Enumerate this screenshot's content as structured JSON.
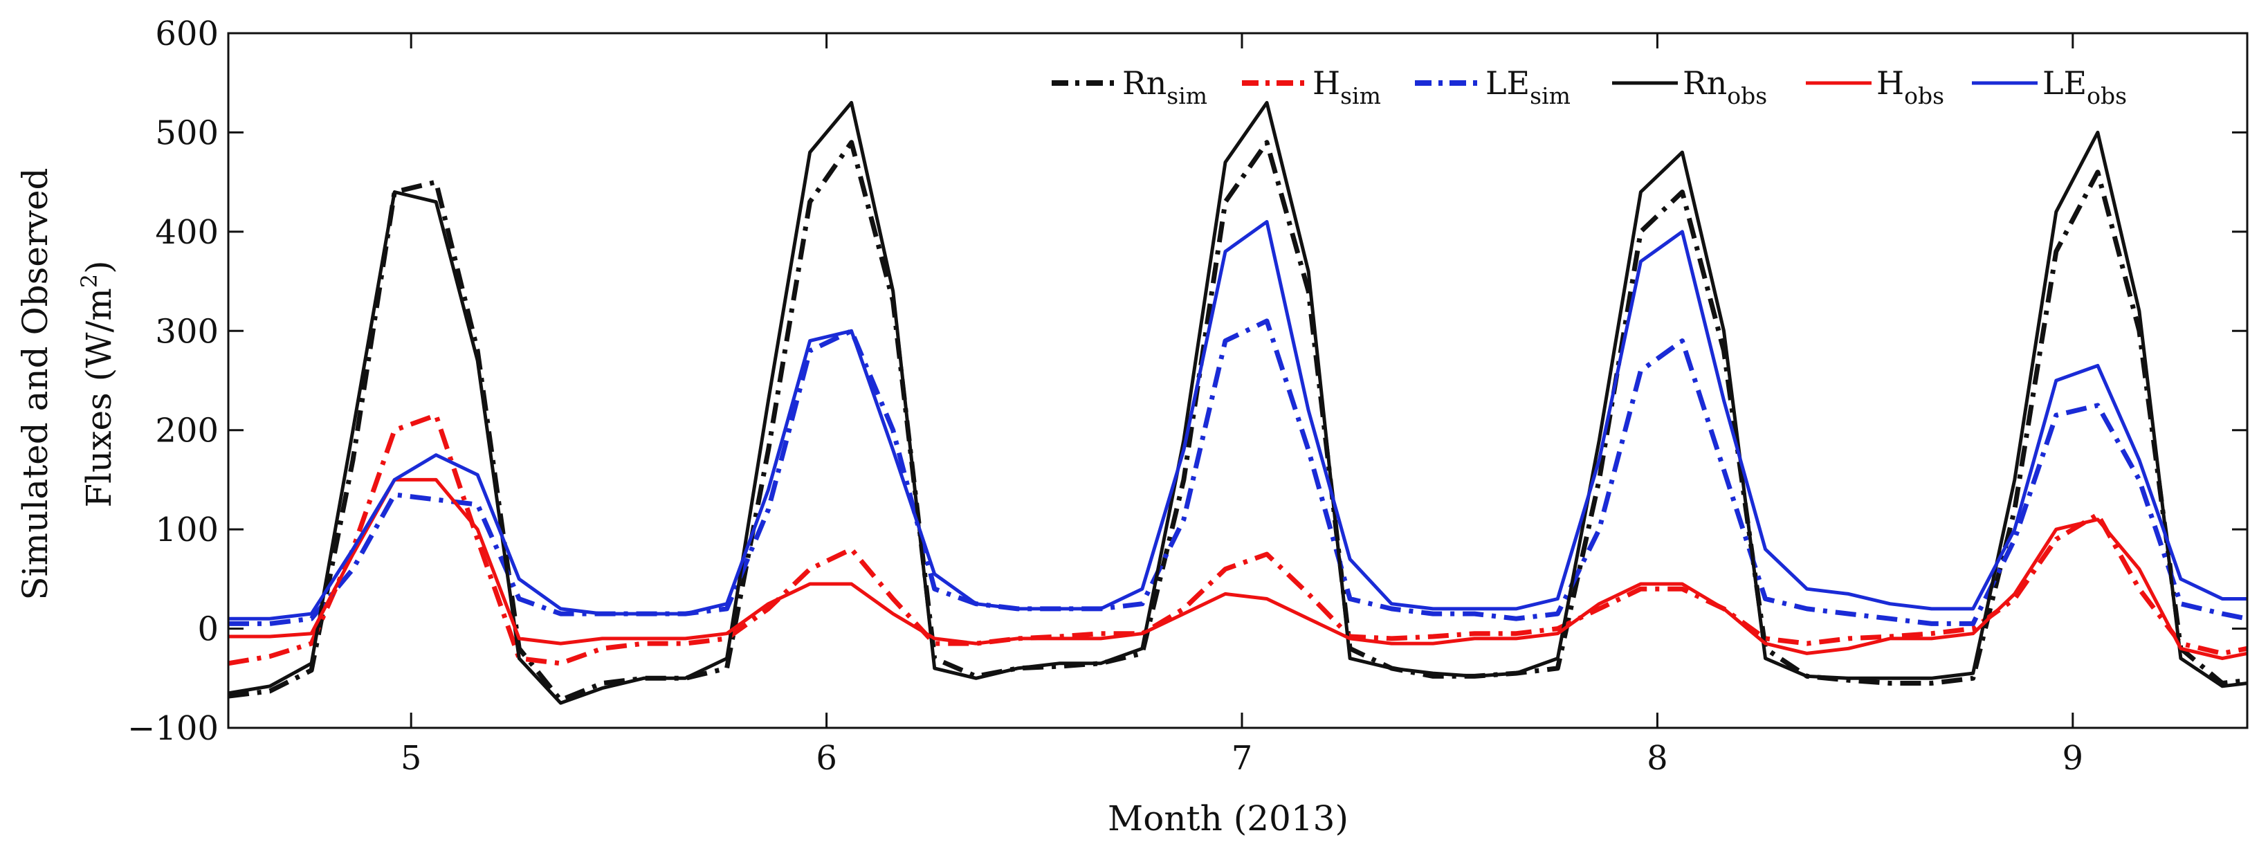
{
  "chart_data": {
    "type": "line",
    "title": "",
    "xlabel": "Month (2013)",
    "ylabel": "Simulated and Observed Fluxes (W/m²)",
    "ylabel_main": "Simulated and Observed",
    "ylabel_second": "Fluxes (W/m",
    "ylabel_sup": "2",
    "ylabel_close": ")",
    "xlim": [
      4.56,
      9.42
    ],
    "ylim": [
      -100,
      600
    ],
    "yticks": [
      -100,
      0,
      100,
      200,
      300,
      400,
      500,
      600
    ],
    "ytick_labels": [
      "−100",
      "0",
      "100",
      "200",
      "300",
      "400",
      "500",
      "600"
    ],
    "xticks": [
      5,
      6,
      7,
      8,
      9
    ],
    "xtick_labels": [
      "5",
      "6",
      "7",
      "8",
      "9"
    ],
    "grid": false,
    "legend_position": "top-right",
    "x": [
      4.56,
      4.66,
      4.76,
      4.86,
      4.96,
      5.06,
      5.16,
      5.26,
      5.36,
      5.46,
      5.56,
      5.66,
      5.76,
      5.86,
      5.96,
      6.06,
      6.16,
      6.26,
      6.36,
      6.46,
      6.56,
      6.66,
      6.76,
      6.86,
      6.96,
      7.06,
      7.16,
      7.26,
      7.36,
      7.46,
      7.56,
      7.66,
      7.76,
      7.86,
      7.96,
      8.06,
      8.16,
      8.26,
      8.36,
      8.46,
      8.56,
      8.66,
      8.76,
      8.86,
      8.96,
      9.06,
      9.16,
      9.26,
      9.36,
      9.42
    ],
    "series": [
      {
        "name": "Rn_sim",
        "label_main": "Rn",
        "label_sub": "sim",
        "color": "#111111",
        "dash": "dashdot",
        "values": [
          -68,
          -63,
          -42,
          170,
          440,
          450,
          280,
          -20,
          -72,
          -55,
          -50,
          -50,
          -40,
          180,
          430,
          490,
          330,
          -30,
          -48,
          -40,
          -38,
          -35,
          -25,
          150,
          430,
          490,
          340,
          -20,
          -40,
          -48,
          -48,
          -45,
          -40,
          150,
          400,
          440,
          280,
          -20,
          -48,
          -52,
          -55,
          -55,
          -50,
          120,
          380,
          460,
          300,
          -20,
          -55,
          -52
        ]
      },
      {
        "name": "H_sim",
        "label_main": "H",
        "label_sub": "sim",
        "color": "#ee1111",
        "dash": "dashdot",
        "values": [
          -35,
          -28,
          -15,
          80,
          200,
          215,
          90,
          -30,
          -35,
          -20,
          -15,
          -15,
          -10,
          20,
          60,
          80,
          30,
          -15,
          -15,
          -10,
          -8,
          -5,
          -5,
          20,
          60,
          75,
          35,
          -8,
          -10,
          -8,
          -5,
          -5,
          0,
          20,
          40,
          40,
          20,
          -10,
          -15,
          -10,
          -8,
          -5,
          0,
          30,
          90,
          115,
          40,
          -15,
          -25,
          -20
        ]
      },
      {
        "name": "LE_sim",
        "label_main": "LE",
        "label_sub": "sim",
        "color": "#1a2bd6",
        "dash": "dashdot",
        "values": [
          5,
          5,
          10,
          60,
          135,
          130,
          125,
          30,
          15,
          15,
          15,
          15,
          20,
          120,
          280,
          300,
          200,
          40,
          25,
          20,
          20,
          20,
          25,
          110,
          290,
          310,
          180,
          30,
          20,
          15,
          15,
          10,
          15,
          100,
          260,
          290,
          160,
          30,
          20,
          15,
          10,
          5,
          5,
          90,
          215,
          225,
          150,
          25,
          15,
          10
        ]
      },
      {
        "name": "Rn_obs",
        "label_main": "Rn",
        "label_sub": "obs",
        "color": "#111111",
        "dash": "solid",
        "values": [
          -65,
          -58,
          -35,
          200,
          440,
          430,
          270,
          -30,
          -75,
          -60,
          -50,
          -50,
          -30,
          230,
          480,
          530,
          340,
          -40,
          -50,
          -40,
          -35,
          -35,
          -20,
          190,
          470,
          530,
          360,
          -30,
          -40,
          -45,
          -48,
          -45,
          -30,
          190,
          440,
          480,
          300,
          -30,
          -48,
          -50,
          -50,
          -50,
          -45,
          150,
          420,
          500,
          320,
          -30,
          -58,
          -55
        ]
      },
      {
        "name": "H_obs",
        "label_main": "H",
        "label_sub": "obs",
        "color": "#ee1111",
        "dash": "solid",
        "values": [
          -8,
          -8,
          -5,
          75,
          150,
          150,
          100,
          -10,
          -15,
          -10,
          -10,
          -10,
          -5,
          25,
          45,
          45,
          15,
          -10,
          -15,
          -10,
          -10,
          -10,
          -5,
          15,
          35,
          30,
          10,
          -10,
          -15,
          -15,
          -10,
          -10,
          -5,
          25,
          45,
          45,
          20,
          -15,
          -25,
          -20,
          -10,
          -10,
          -5,
          35,
          100,
          110,
          60,
          -20,
          -30,
          -25
        ]
      },
      {
        "name": "LE_obs",
        "label_main": "LE",
        "label_sub": "obs",
        "color": "#1a2bd6",
        "dash": "solid",
        "values": [
          10,
          10,
          15,
          80,
          150,
          175,
          155,
          50,
          20,
          15,
          15,
          15,
          25,
          140,
          290,
          300,
          180,
          55,
          25,
          20,
          20,
          20,
          40,
          180,
          380,
          410,
          220,
          70,
          25,
          20,
          20,
          20,
          30,
          170,
          370,
          400,
          230,
          80,
          40,
          35,
          25,
          20,
          20,
          100,
          250,
          265,
          170,
          50,
          30,
          30
        ]
      }
    ]
  }
}
